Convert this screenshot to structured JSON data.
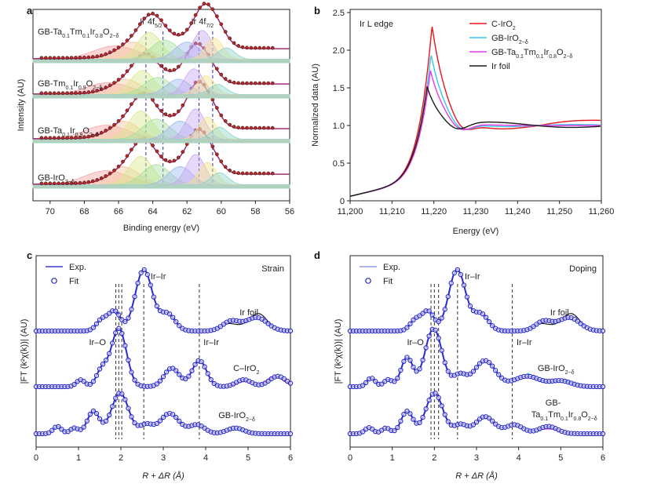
{
  "figure": {
    "panel_labels": [
      "a",
      "b",
      "c",
      "d"
    ]
  },
  "chart_data": [
    {
      "panel": "a",
      "type": "line",
      "title": "",
      "xlabel": "Binding energy (eV)",
      "ylabel": "Intensity (AU)",
      "xlim": [
        71,
        56
      ],
      "xticks": [
        70,
        68,
        66,
        64,
        62,
        60,
        58,
        56
      ],
      "peak_labels": [
        {
          "main": "Ir 4f",
          "sub": "5/2",
          "x": 64.1
        },
        {
          "main": "Ir 4f",
          "sub": "7/2",
          "x": 61.1
        }
      ],
      "dashed_lines_x": [
        64.4,
        63.4,
        61.3,
        60.5
      ],
      "series": [
        {
          "name": "GB-IrO₂₋δ",
          "label": {
            "parts": [
              {
                "t": "GB-IrO"
              },
              {
                "t": "2−δ",
                "sub": true
              }
            ]
          },
          "peak1": 64.5,
          "peak2": 61.4,
          "amp1": 1.0,
          "amp2": 1.0
        },
        {
          "name": "GB-Ta₀.₁Ir₀.₉O₂₋δ",
          "label": {
            "parts": [
              {
                "t": "GB-Ta"
              },
              {
                "t": "0.1",
                "sub": true
              },
              {
                "t": "Ir"
              },
              {
                "t": "0.9",
                "sub": true
              },
              {
                "t": "O"
              },
              {
                "t": "2−δ",
                "sub": true
              }
            ]
          },
          "peak1": 64.5,
          "peak2": 61.4,
          "amp1": 1.0,
          "amp2": 1.05
        },
        {
          "name": "GB-Tm₀.₁Ir₀.₉O₂₋δ",
          "label": {
            "parts": [
              {
                "t": "GB-Tm"
              },
              {
                "t": "0.1",
                "sub": true
              },
              {
                "t": "Ir"
              },
              {
                "t": "0.9",
                "sub": true
              },
              {
                "t": "O"
              },
              {
                "t": "2−δ",
                "sub": true
              }
            ]
          },
          "peak1": 64.4,
          "peak2": 61.5,
          "amp1": 0.85,
          "amp2": 0.9
        },
        {
          "name": "GB-Ta₀.₁Tm₀.₁Ir₀.₈O₂₋δ",
          "label": {
            "parts": [
              {
                "t": "GB-Ta"
              },
              {
                "t": "0.1",
                "sub": true
              },
              {
                "t": "Tm"
              },
              {
                "t": "0.1",
                "sub": true
              },
              {
                "t": "Ir"
              },
              {
                "t": "0.8",
                "sub": true
              },
              {
                "t": "O"
              },
              {
                "t": "2−δ",
                "sub": true
              }
            ]
          },
          "peak1": 64.0,
          "peak2": 61.0,
          "amp1": 0.95,
          "amp2": 1.0
        }
      ],
      "fit_component_colors": [
        "#f4a3a3",
        "#f7c59f",
        "#d9e88f",
        "#a8e0a0",
        "#9fb7f0",
        "#c7a8ef",
        "#f5e38f",
        "#8fd4c9"
      ]
    },
    {
      "panel": "b",
      "type": "line",
      "title": "Ir L edge",
      "xlabel": "Energy (eV)",
      "ylabel": "Normalized data (AU)",
      "xlim": [
        11200,
        11260
      ],
      "ylim": [
        0,
        2.5
      ],
      "xticks": [
        11200,
        11210,
        11220,
        11230,
        11240,
        11250,
        11260
      ],
      "xtick_labels": [
        "11,200",
        "11,210",
        "11,220",
        "11,230",
        "11,240",
        "11,250",
        "11,260"
      ],
      "yticks": [
        0,
        0.5,
        1.0,
        1.5,
        2.0,
        2.5
      ],
      "ytick_labels": [
        "0",
        "0.5",
        "1.0",
        "1.5",
        "2.0",
        "2.5"
      ],
      "legend_position": "top-right",
      "series": [
        {
          "name": "C-IrO₂",
          "label": {
            "parts": [
              {
                "t": "C-IrO"
              },
              {
                "t": "2",
                "sub": true
              }
            ]
          },
          "color": "#e8141c",
          "peak": 2.28,
          "peak_x": 11219.5,
          "osc": -0.08
        },
        {
          "name": "GB-IrO₂₋δ",
          "label": {
            "parts": [
              {
                "t": "GB-IrO"
              },
              {
                "t": "2−δ",
                "sub": true
              }
            ]
          },
          "color": "#35c8ec",
          "peak": 1.93,
          "peak_x": 11219.3,
          "osc": -0.03
        },
        {
          "name": "GB-Ta₀.₁Tm₀.₁Ir₀.₈O₂₋δ",
          "label": {
            "parts": [
              {
                "t": "GB-Ta"
              },
              {
                "t": "0.1",
                "sub": true
              },
              {
                "t": "Tm"
              },
              {
                "t": "0.1",
                "sub": true
              },
              {
                "t": "Ir"
              },
              {
                "t": "0.8",
                "sub": true
              },
              {
                "t": "O"
              },
              {
                "t": "2−δ",
                "sub": true
              }
            ]
          },
          "color": "#e63ae6",
          "peak": 1.73,
          "peak_x": 11219.2,
          "osc": 0.0
        },
        {
          "name": "Ir foil",
          "label": {
            "parts": [
              {
                "t": "Ir foil"
              }
            ]
          },
          "color": "#1a1a1a",
          "peak": 1.55,
          "peak_x": 11218.5,
          "osc": 0.06
        }
      ]
    },
    {
      "panel": "c",
      "type": "line",
      "title": "Strain",
      "xlabel": "R + ΔR (Å)",
      "ylabel": "|FT (k²χ(k))| (AU)",
      "xlim": [
        0,
        6
      ],
      "xticks": [
        0,
        1,
        2,
        3,
        4,
        5,
        6
      ],
      "legend": [
        {
          "name": "Exp.",
          "style": "line",
          "color": "#3a3ad0"
        },
        {
          "name": "Fit",
          "style": "circle",
          "color": "#2424c8"
        }
      ],
      "dashed_lines_x": [
        1.88,
        1.95,
        2.02,
        2.54,
        3.85
      ],
      "annotations": [
        {
          "text": "Ir–Ir",
          "x": 2.7,
          "row": 0
        },
        {
          "text": "Ir–O",
          "x": 1.25,
          "row": 1
        },
        {
          "text": "Ir–Ir",
          "x": 3.95,
          "row": 1
        }
      ],
      "series": [
        {
          "name": "Ir foil",
          "label": {
            "parts": [
              {
                "t": "Ir foil"
              }
            ]
          },
          "label_x": 4.8,
          "line_color": "#1a1a1a",
          "baseline": 0,
          "peaks": [
            [
              1.55,
              0.18,
              0.13
            ],
            [
              1.85,
              0.32,
              0.14
            ],
            [
              2.54,
              1.0,
              0.2
            ],
            [
              3.1,
              0.28,
              0.18
            ],
            [
              4.6,
              0.16,
              0.2
            ],
            [
              5.2,
              0.22,
              0.25
            ]
          ]
        },
        {
          "name": "C-IrO₂",
          "label": {
            "parts": [
              {
                "t": "C–IrO"
              },
              {
                "t": "2",
                "sub": true
              }
            ]
          },
          "label_x": 4.65,
          "line_color": "#e8141c",
          "baseline": 1,
          "peaks": [
            [
              1.05,
              0.12,
              0.1
            ],
            [
              1.55,
              0.28,
              0.13
            ],
            [
              1.95,
              1.0,
              0.18
            ],
            [
              3.2,
              0.32,
              0.18
            ],
            [
              3.85,
              0.45,
              0.17
            ],
            [
              4.9,
              0.12,
              0.18
            ],
            [
              5.7,
              0.18,
              0.2
            ]
          ]
        },
        {
          "name": "GB-IrO₂₋δ",
          "label": {
            "parts": [
              {
                "t": "GB-IrO"
              },
              {
                "t": "2−δ",
                "sub": true
              }
            ]
          },
          "label_x": 4.3,
          "line_color": "#35c8ec",
          "baseline": 2,
          "peaks": [
            [
              0.5,
              0.18,
              0.1
            ],
            [
              0.9,
              0.14,
              0.1
            ],
            [
              1.35,
              0.55,
              0.14
            ],
            [
              1.98,
              1.0,
              0.2
            ],
            [
              2.6,
              0.22,
              0.15
            ],
            [
              3.15,
              0.5,
              0.22
            ],
            [
              3.8,
              0.22,
              0.18
            ],
            [
              4.7,
              0.14,
              0.2
            ]
          ]
        }
      ]
    },
    {
      "panel": "d",
      "type": "line",
      "title": "Doping",
      "xlabel": "R + ΔR (Å)",
      "ylabel": "|FT (k²χ(k))| (AU)",
      "xlim": [
        0,
        6
      ],
      "xticks": [
        0,
        1,
        2,
        3,
        4,
        5,
        6
      ],
      "legend": [
        {
          "name": "Exp.",
          "style": "line",
          "color": "#9a9ae8"
        },
        {
          "name": "Fit",
          "style": "circle",
          "color": "#2424c8"
        }
      ],
      "dashed_lines_x": [
        1.92,
        2.0,
        2.1,
        2.55,
        3.85
      ],
      "annotations": [
        {
          "text": "Ir–Ir",
          "x": 2.72,
          "row": 0
        },
        {
          "text": "Ir–O",
          "x": 1.35,
          "row": 1
        },
        {
          "text": "Ir–Ir",
          "x": 3.95,
          "row": 1
        }
      ],
      "series": [
        {
          "name": "Ir foil",
          "label": {
            "parts": [
              {
                "t": "Ir foil"
              }
            ]
          },
          "label_x": 4.75,
          "line_color": "#1a1a1a",
          "baseline": 0,
          "peaks": [
            [
              1.55,
              0.18,
              0.13
            ],
            [
              1.85,
              0.32,
              0.14
            ],
            [
              2.54,
              1.0,
              0.2
            ],
            [
              3.1,
              0.28,
              0.18
            ],
            [
              4.6,
              0.16,
              0.2
            ],
            [
              5.2,
              0.22,
              0.25
            ]
          ]
        },
        {
          "name": "GB-IrO₂₋δ",
          "label": {
            "parts": [
              {
                "t": "GB-IrO"
              },
              {
                "t": "2−δ",
                "sub": true
              }
            ]
          },
          "label_x": 4.45,
          "line_color": "#35c8ec",
          "baseline": 1,
          "peaks": [
            [
              0.5,
              0.15,
              0.1
            ],
            [
              0.9,
              0.12,
              0.1
            ],
            [
              1.35,
              0.5,
              0.14
            ],
            [
              1.98,
              1.0,
              0.2
            ],
            [
              2.6,
              0.2,
              0.15
            ],
            [
              3.2,
              0.45,
              0.25
            ],
            [
              4.2,
              0.18,
              0.3
            ],
            [
              5.0,
              0.1,
              0.25
            ]
          ]
        },
        {
          "name": "GB-Ta₀.₁Tm₀.₁Ir₀.₈O₂₋δ",
          "label": {
            "lines": [
              [
                {
                  "t": "GB-"
                }
              ],
              [
                {
                  "t": "Ta"
                },
                {
                  "t": "0.1",
                  "sub": true
                },
                {
                  "t": "Tm"
                },
                {
                  "t": "0.1",
                  "sub": true
                },
                {
                  "t": "Ir"
                },
                {
                  "t": "0.8",
                  "sub": true
                },
                {
                  "t": "O"
                },
                {
                  "t": "2−δ",
                  "sub": true
                }
              ]
            ]
          },
          "label_x": 4.3,
          "line_color": "#e63ae6",
          "baseline": 2,
          "peaks": [
            [
              0.45,
              0.15,
              0.1
            ],
            [
              0.85,
              0.14,
              0.1
            ],
            [
              1.35,
              0.55,
              0.14
            ],
            [
              2.0,
              1.0,
              0.2
            ],
            [
              2.62,
              0.22,
              0.15
            ],
            [
              3.2,
              0.42,
              0.22
            ],
            [
              3.9,
              0.22,
              0.2
            ],
            [
              4.7,
              0.18,
              0.22
            ]
          ]
        }
      ]
    }
  ]
}
